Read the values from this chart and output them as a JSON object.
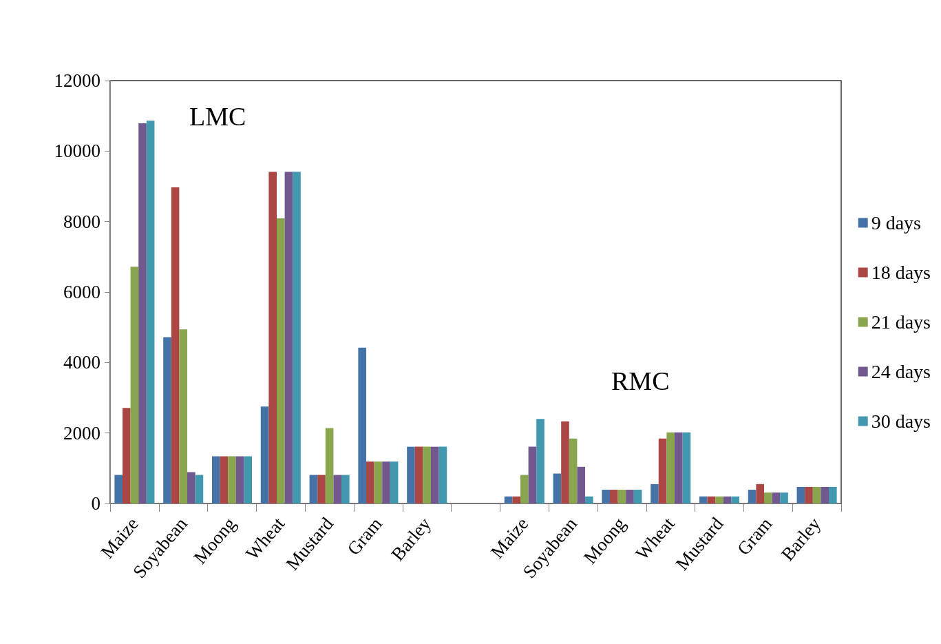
{
  "chart_data": {
    "type": "bar",
    "categories": [
      "Maize",
      "Soyabean",
      "Moong",
      "Wheat",
      "Mustard",
      "Gram",
      "Barley",
      null,
      "Maize",
      "Soyabean",
      "Moong",
      "Wheat",
      "Mustard",
      "Gram",
      "Barley"
    ],
    "series": [
      {
        "name": "9 days",
        "color": "#4572a7",
        "values": [
          810,
          4720,
          1340,
          2750,
          810,
          4420,
          1610,
          null,
          200,
          850,
          390,
          550,
          200,
          390,
          470
        ]
      },
      {
        "name": "18 days",
        "color": "#aa4643",
        "values": [
          2710,
          8970,
          1340,
          9410,
          810,
          1190,
          1610,
          null,
          200,
          2330,
          390,
          1840,
          200,
          550,
          470
        ]
      },
      {
        "name": "21 days",
        "color": "#89a54e",
        "values": [
          6720,
          4940,
          1340,
          8090,
          2140,
          1190,
          1610,
          null,
          810,
          1840,
          390,
          2020,
          200,
          310,
          470
        ]
      },
      {
        "name": "24 days",
        "color": "#71588f",
        "values": [
          10790,
          890,
          1340,
          9410,
          810,
          1190,
          1610,
          null,
          1610,
          1040,
          390,
          2020,
          200,
          310,
          470
        ]
      },
      {
        "name": "30 days",
        "color": "#4198af",
        "values": [
          10860,
          810,
          1340,
          9410,
          810,
          1190,
          1610,
          null,
          2400,
          200,
          390,
          2020,
          200,
          310,
          470
        ]
      }
    ],
    "ylim": [
      0,
      12000
    ],
    "yticks": [
      0,
      2000,
      4000,
      6000,
      8000,
      10000,
      12000
    ],
    "annotations": [
      "LMC",
      "RMC"
    ],
    "legend": "right",
    "grid": false
  }
}
